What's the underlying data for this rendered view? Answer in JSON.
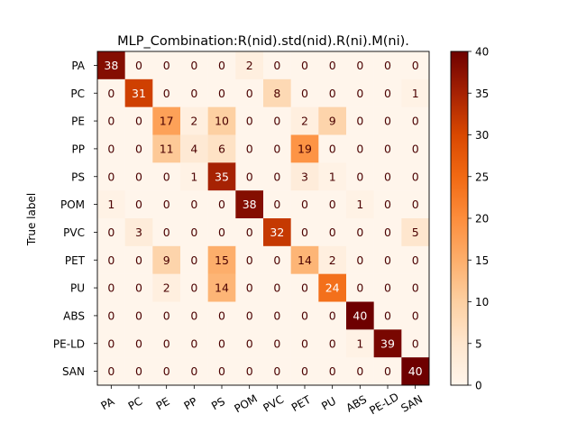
{
  "chart_data": {
    "type": "heatmap",
    "title": "MLP_Combination:R(nid).std(nid).R(ni).M(ni).",
    "ylabel": "True label",
    "xlabel": "",
    "x_tick_labels": [
      "PA",
      "PC",
      "PE",
      "PP",
      "PS",
      "POM",
      "PVC",
      "PET",
      "PU",
      "ABS",
      "PE-LD",
      "SAN"
    ],
    "y_tick_labels": [
      "PA",
      "PC",
      "PE",
      "PP",
      "PS",
      "POM",
      "PVC",
      "PET",
      "PU",
      "ABS",
      "PE-LD",
      "SAN"
    ],
    "matrix": [
      [
        38,
        0,
        0,
        0,
        0,
        2,
        0,
        0,
        0,
        0,
        0,
        0
      ],
      [
        0,
        31,
        0,
        0,
        0,
        0,
        8,
        0,
        0,
        0,
        0,
        1
      ],
      [
        0,
        0,
        17,
        2,
        10,
        0,
        0,
        2,
        9,
        0,
        0,
        0
      ],
      [
        0,
        0,
        11,
        4,
        6,
        0,
        0,
        19,
        0,
        0,
        0,
        0
      ],
      [
        0,
        0,
        0,
        1,
        35,
        0,
        0,
        3,
        1,
        0,
        0,
        0
      ],
      [
        1,
        0,
        0,
        0,
        0,
        38,
        0,
        0,
        0,
        1,
        0,
        0
      ],
      [
        0,
        3,
        0,
        0,
        0,
        0,
        32,
        0,
        0,
        0,
        0,
        5
      ],
      [
        0,
        0,
        9,
        0,
        15,
        0,
        0,
        14,
        2,
        0,
        0,
        0
      ],
      [
        0,
        0,
        2,
        0,
        14,
        0,
        0,
        0,
        24,
        0,
        0,
        0
      ],
      [
        0,
        0,
        0,
        0,
        0,
        0,
        0,
        0,
        0,
        40,
        0,
        0
      ],
      [
        0,
        0,
        0,
        0,
        0,
        0,
        0,
        0,
        0,
        1,
        39,
        0
      ],
      [
        0,
        0,
        0,
        0,
        0,
        0,
        0,
        0,
        0,
        0,
        0,
        40
      ]
    ],
    "colormap": "OrRd-to-darkred",
    "color_range": [
      0,
      40
    ],
    "colorbar_ticks": [
      0,
      5,
      10,
      15,
      20,
      25,
      30,
      35,
      40
    ]
  }
}
